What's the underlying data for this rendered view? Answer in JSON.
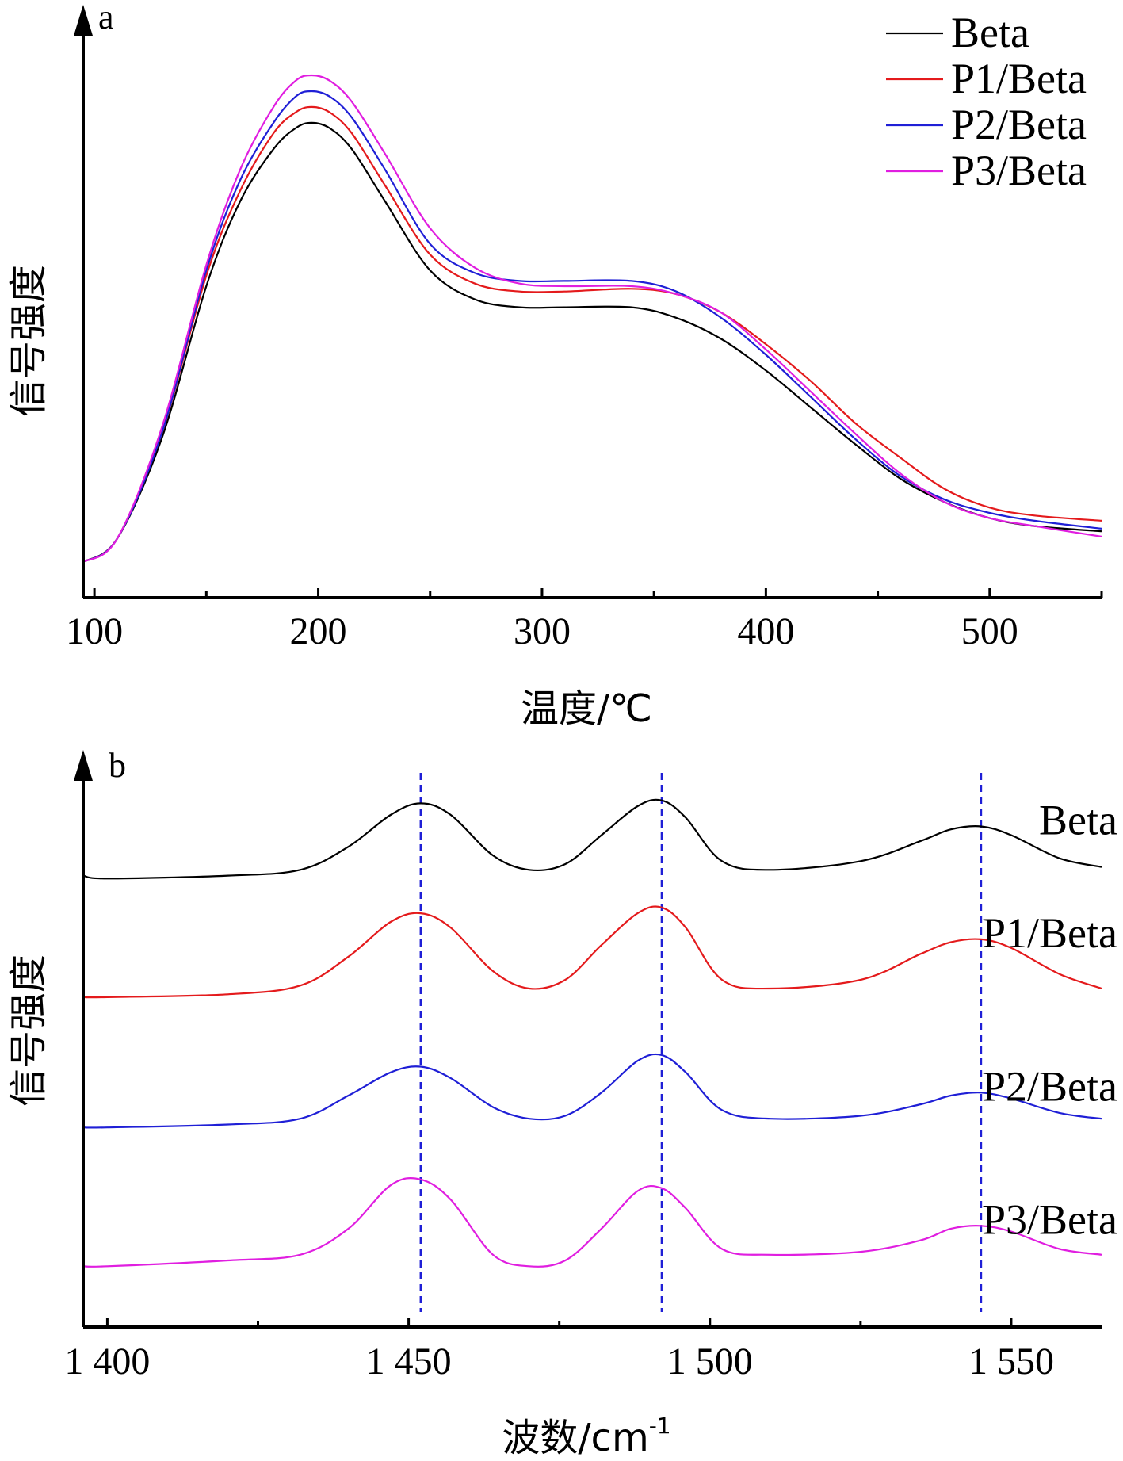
{
  "chart_data": [
    {
      "panel_label": "a",
      "type": "line",
      "xlabel": "温度/℃",
      "ylabel": "信号强度",
      "xlim": [
        95,
        550
      ],
      "ylim": [
        0,
        1
      ],
      "x_ticks": [
        100,
        200,
        300,
        400,
        500
      ],
      "x_tick_labels": [
        "100",
        "200",
        "300",
        "400",
        "500"
      ],
      "x_minor_ticks": [
        150,
        250,
        350,
        450,
        550
      ],
      "y_ticks_shown": false,
      "legend_position": "top-right",
      "series": [
        {
          "name": "Beta",
          "color": "#000000",
          "x": [
            95,
            110,
            130,
            150,
            165,
            180,
            190,
            197,
            205,
            215,
            230,
            250,
            270,
            290,
            310,
            340,
            360,
            380,
            400,
            420,
            440,
            460,
            480,
            500,
            520,
            550
          ],
          "y": [
            0.077,
            0.12,
            0.31,
            0.6,
            0.76,
            0.86,
            0.9,
            0.91,
            0.9,
            0.86,
            0.76,
            0.63,
            0.575,
            0.56,
            0.56,
            0.56,
            0.54,
            0.5,
            0.44,
            0.37,
            0.3,
            0.235,
            0.19,
            0.16,
            0.145,
            0.135
          ]
        },
        {
          "name": "P1/Beta",
          "color": "#e41a1c",
          "x": [
            95,
            110,
            130,
            150,
            165,
            180,
            190,
            197,
            205,
            215,
            230,
            250,
            270,
            290,
            310,
            340,
            360,
            380,
            400,
            420,
            440,
            460,
            480,
            500,
            520,
            550
          ],
          "y": [
            0.077,
            0.12,
            0.32,
            0.62,
            0.78,
            0.89,
            0.93,
            0.94,
            0.93,
            0.89,
            0.79,
            0.66,
            0.605,
            0.59,
            0.59,
            0.595,
            0.585,
            0.55,
            0.49,
            0.42,
            0.34,
            0.275,
            0.215,
            0.18,
            0.165,
            0.155
          ]
        },
        {
          "name": "P2/Beta",
          "color": "#1f1fd6",
          "x": [
            95,
            110,
            130,
            150,
            165,
            180,
            190,
            197,
            205,
            215,
            230,
            250,
            270,
            290,
            310,
            340,
            360,
            380,
            400,
            420,
            440,
            460,
            480,
            500,
            520,
            550
          ],
          "y": [
            0.077,
            0.12,
            0.32,
            0.63,
            0.8,
            0.91,
            0.96,
            0.97,
            0.96,
            0.92,
            0.82,
            0.68,
            0.625,
            0.61,
            0.61,
            0.61,
            0.59,
            0.54,
            0.47,
            0.39,
            0.31,
            0.24,
            0.195,
            0.17,
            0.155,
            0.14
          ]
        },
        {
          "name": "P3/Beta",
          "color": "#e01ee0",
          "x": [
            95,
            110,
            130,
            150,
            165,
            180,
            190,
            197,
            205,
            215,
            230,
            250,
            270,
            290,
            310,
            340,
            360,
            380,
            400,
            420,
            440,
            460,
            480,
            500,
            520,
            550
          ],
          "y": [
            0.077,
            0.12,
            0.33,
            0.64,
            0.82,
            0.94,
            0.99,
            1.0,
            0.99,
            0.95,
            0.85,
            0.71,
            0.635,
            0.605,
            0.6,
            0.6,
            0.585,
            0.55,
            0.48,
            0.4,
            0.32,
            0.245,
            0.19,
            0.16,
            0.145,
            0.125
          ]
        }
      ]
    },
    {
      "panel_label": "b",
      "type": "line",
      "xlabel": "波数/cm",
      "xlabel_superscript": "-1",
      "ylabel": "信号强度",
      "xlim": [
        1396,
        1565
      ],
      "ylim": [
        0,
        1
      ],
      "x_ticks": [
        1400,
        1450,
        1500,
        1550
      ],
      "x_tick_labels": [
        "1 400",
        "1 450",
        "1 500",
        "1 550"
      ],
      "x_minor_ticks": [
        1425,
        1475,
        1525
      ],
      "y_ticks_shown": false,
      "reference_lines": [
        1452,
        1492,
        1545
      ],
      "reference_line_color": "#1f1fd6",
      "series": [
        {
          "name": "Beta",
          "color": "#000000",
          "x": [
            1396,
            1400,
            1420,
            1432,
            1440,
            1447,
            1452,
            1457,
            1464,
            1470,
            1476,
            1482,
            1488,
            1492,
            1496,
            1502,
            1510,
            1525,
            1535,
            1540,
            1545,
            1550,
            1558,
            1565
          ],
          "y": [
            0.78,
            0.775,
            0.78,
            0.79,
            0.83,
            0.885,
            0.905,
            0.885,
            0.815,
            0.79,
            0.8,
            0.85,
            0.9,
            0.91,
            0.88,
            0.805,
            0.79,
            0.805,
            0.84,
            0.86,
            0.865,
            0.85,
            0.81,
            0.795
          ]
        },
        {
          "name": "P1/Beta",
          "color": "#e41a1c",
          "x": [
            1396,
            1400,
            1420,
            1432,
            1440,
            1447,
            1452,
            1457,
            1464,
            1470,
            1476,
            1482,
            1488,
            1492,
            1496,
            1502,
            1510,
            1525,
            1535,
            1540,
            1545,
            1550,
            1558,
            1565
          ],
          "y": [
            0.57,
            0.57,
            0.575,
            0.59,
            0.64,
            0.7,
            0.715,
            0.69,
            0.615,
            0.585,
            0.6,
            0.66,
            0.715,
            0.725,
            0.69,
            0.6,
            0.585,
            0.6,
            0.645,
            0.665,
            0.67,
            0.655,
            0.61,
            0.585
          ]
        },
        {
          "name": "P2/Beta",
          "color": "#1f1fd6",
          "x": [
            1396,
            1400,
            1420,
            1432,
            1440,
            1447,
            1452,
            1457,
            1464,
            1470,
            1476,
            1482,
            1488,
            1492,
            1496,
            1502,
            1510,
            1525,
            1535,
            1540,
            1545,
            1550,
            1558,
            1565
          ],
          "y": [
            0.345,
            0.345,
            0.35,
            0.36,
            0.4,
            0.44,
            0.45,
            0.43,
            0.38,
            0.36,
            0.365,
            0.405,
            0.46,
            0.47,
            0.44,
            0.375,
            0.36,
            0.365,
            0.385,
            0.4,
            0.405,
            0.395,
            0.37,
            0.36
          ]
        },
        {
          "name": "P3/Beta",
          "color": "#e01ee0",
          "x": [
            1396,
            1400,
            1420,
            1432,
            1440,
            1447,
            1452,
            1457,
            1464,
            1470,
            1476,
            1482,
            1488,
            1492,
            1496,
            1502,
            1510,
            1525,
            1535,
            1540,
            1545,
            1550,
            1558,
            1565
          ],
          "y": [
            0.105,
            0.105,
            0.115,
            0.125,
            0.17,
            0.245,
            0.255,
            0.22,
            0.125,
            0.105,
            0.115,
            0.17,
            0.235,
            0.24,
            0.205,
            0.135,
            0.125,
            0.13,
            0.15,
            0.17,
            0.175,
            0.165,
            0.135,
            0.125
          ]
        }
      ]
    }
  ]
}
